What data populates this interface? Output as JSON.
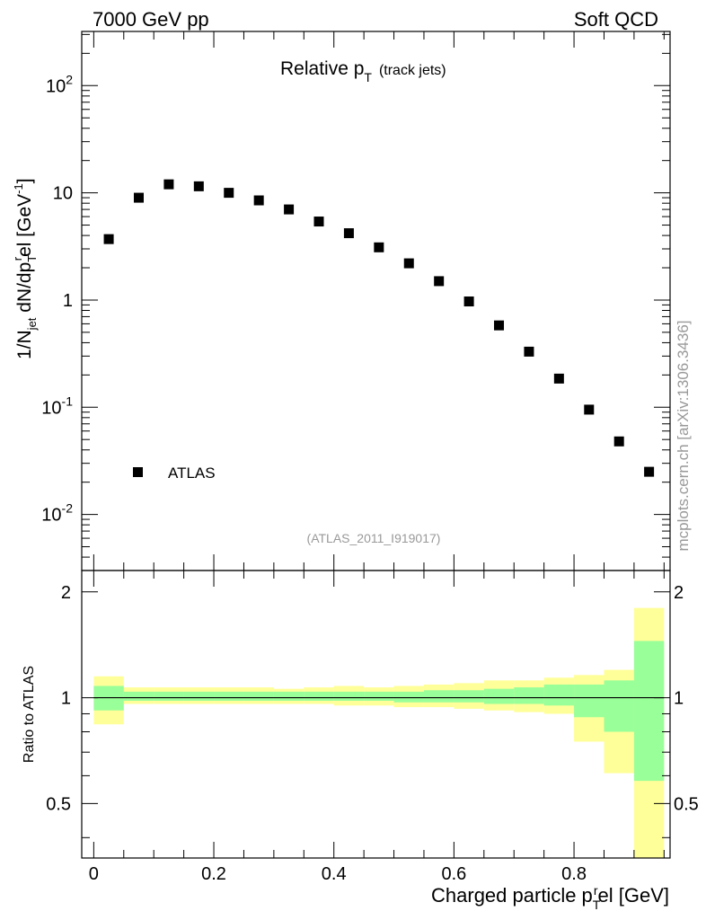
{
  "header": {
    "left": "7000 GeV pp",
    "right": "Soft QCD"
  },
  "side_label": "mcplots.cern.ch [arXiv:1306.3436]",
  "chart_data": [
    {
      "type": "scatter",
      "title_main": "Relative p",
      "title_sub": "T",
      "title_suffix": "(track jets)",
      "ylabel_parts": [
        "1/N",
        "jet",
        " dN/dp",
        "T",
        "r",
        "el [GeV",
        "-1",
        "]"
      ],
      "yscale": "log",
      "ylim": [
        0.003,
        320
      ],
      "xlim": [
        -0.02,
        0.96
      ],
      "y_tick_labels": [
        "10^-2",
        "10^-1",
        "1",
        "10",
        "10^2"
      ],
      "legend": {
        "position": "bottom-left",
        "entries": [
          {
            "name": "ATLAS",
            "marker": "filled-square"
          }
        ]
      },
      "annotation": "(ATLAS_2011_I919017)",
      "series": [
        {
          "name": "ATLAS",
          "x": [
            0.025,
            0.075,
            0.125,
            0.175,
            0.225,
            0.275,
            0.325,
            0.375,
            0.425,
            0.475,
            0.525,
            0.575,
            0.625,
            0.675,
            0.725,
            0.775,
            0.825,
            0.875,
            0.925
          ],
          "y": [
            3.7,
            9.0,
            12.0,
            11.5,
            10.0,
            8.5,
            7.0,
            5.4,
            4.2,
            3.1,
            2.2,
            1.5,
            0.97,
            0.58,
            0.33,
            0.185,
            0.095,
            0.048,
            0.025
          ]
        }
      ]
    },
    {
      "type": "area",
      "ylabel": "Ratio to ATLAS",
      "xlabel_parts": [
        "Charged particle p",
        "T",
        "r",
        "el [GeV]"
      ],
      "ylim": [
        0.35,
        2.3
      ],
      "xlim": [
        -0.02,
        0.96
      ],
      "x_tick_labels": [
        "0",
        "0.2",
        "0.4",
        "0.6",
        "0.8"
      ],
      "y_tick_labels": [
        "0.5",
        "1",
        "2"
      ],
      "reference_line": 1,
      "bin_edges": [
        0.0,
        0.05,
        0.1,
        0.15,
        0.2,
        0.25,
        0.3,
        0.35,
        0.4,
        0.45,
        0.5,
        0.55,
        0.6,
        0.65,
        0.7,
        0.75,
        0.8,
        0.85,
        0.9,
        0.95
      ],
      "bands": [
        {
          "name": "stat+syst",
          "color": "#ffff99",
          "low": [
            0.84,
            0.96,
            0.96,
            0.96,
            0.96,
            0.96,
            0.96,
            0.96,
            0.95,
            0.95,
            0.94,
            0.94,
            0.93,
            0.92,
            0.91,
            0.9,
            0.75,
            0.61,
            0.3
          ],
          "high": [
            1.15,
            1.07,
            1.07,
            1.07,
            1.07,
            1.07,
            1.06,
            1.07,
            1.08,
            1.07,
            1.08,
            1.09,
            1.1,
            1.12,
            1.12,
            1.14,
            1.16,
            1.2,
            1.8
          ]
        },
        {
          "name": "stat",
          "color": "#99ff99",
          "low": [
            0.92,
            0.98,
            0.98,
            0.98,
            0.98,
            0.98,
            0.98,
            0.98,
            0.98,
            0.98,
            0.97,
            0.97,
            0.97,
            0.96,
            0.96,
            0.95,
            0.88,
            0.8,
            0.58
          ],
          "high": [
            1.08,
            1.04,
            1.04,
            1.04,
            1.04,
            1.04,
            1.04,
            1.04,
            1.04,
            1.04,
            1.04,
            1.05,
            1.05,
            1.06,
            1.07,
            1.09,
            1.09,
            1.12,
            1.45
          ]
        }
      ]
    }
  ]
}
